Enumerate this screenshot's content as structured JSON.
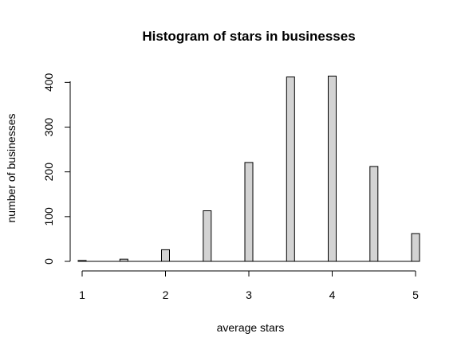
{
  "chart_data": {
    "type": "bar",
    "title": "Histogram of stars in businesses",
    "xlabel": "average stars",
    "ylabel": "number of businesses",
    "x_ticks": [
      "1",
      "2",
      "3",
      "4",
      "5"
    ],
    "y_ticks": [
      "0",
      "100",
      "200",
      "300",
      "400"
    ],
    "xlim": [
      1,
      5
    ],
    "ylim": [
      0,
      420
    ],
    "bins": [
      {
        "center": 1.0,
        "value": 2
      },
      {
        "center": 1.5,
        "value": 5
      },
      {
        "center": 2.0,
        "value": 26
      },
      {
        "center": 2.5,
        "value": 113
      },
      {
        "center": 3.0,
        "value": 221
      },
      {
        "center": 3.5,
        "value": 412
      },
      {
        "center": 4.0,
        "value": 414
      },
      {
        "center": 4.5,
        "value": 212
      },
      {
        "center": 5.0,
        "value": 62
      }
    ],
    "bar_fill": "#d3d3d3",
    "bar_stroke": "#000000",
    "grid": false,
    "legend": "none"
  }
}
